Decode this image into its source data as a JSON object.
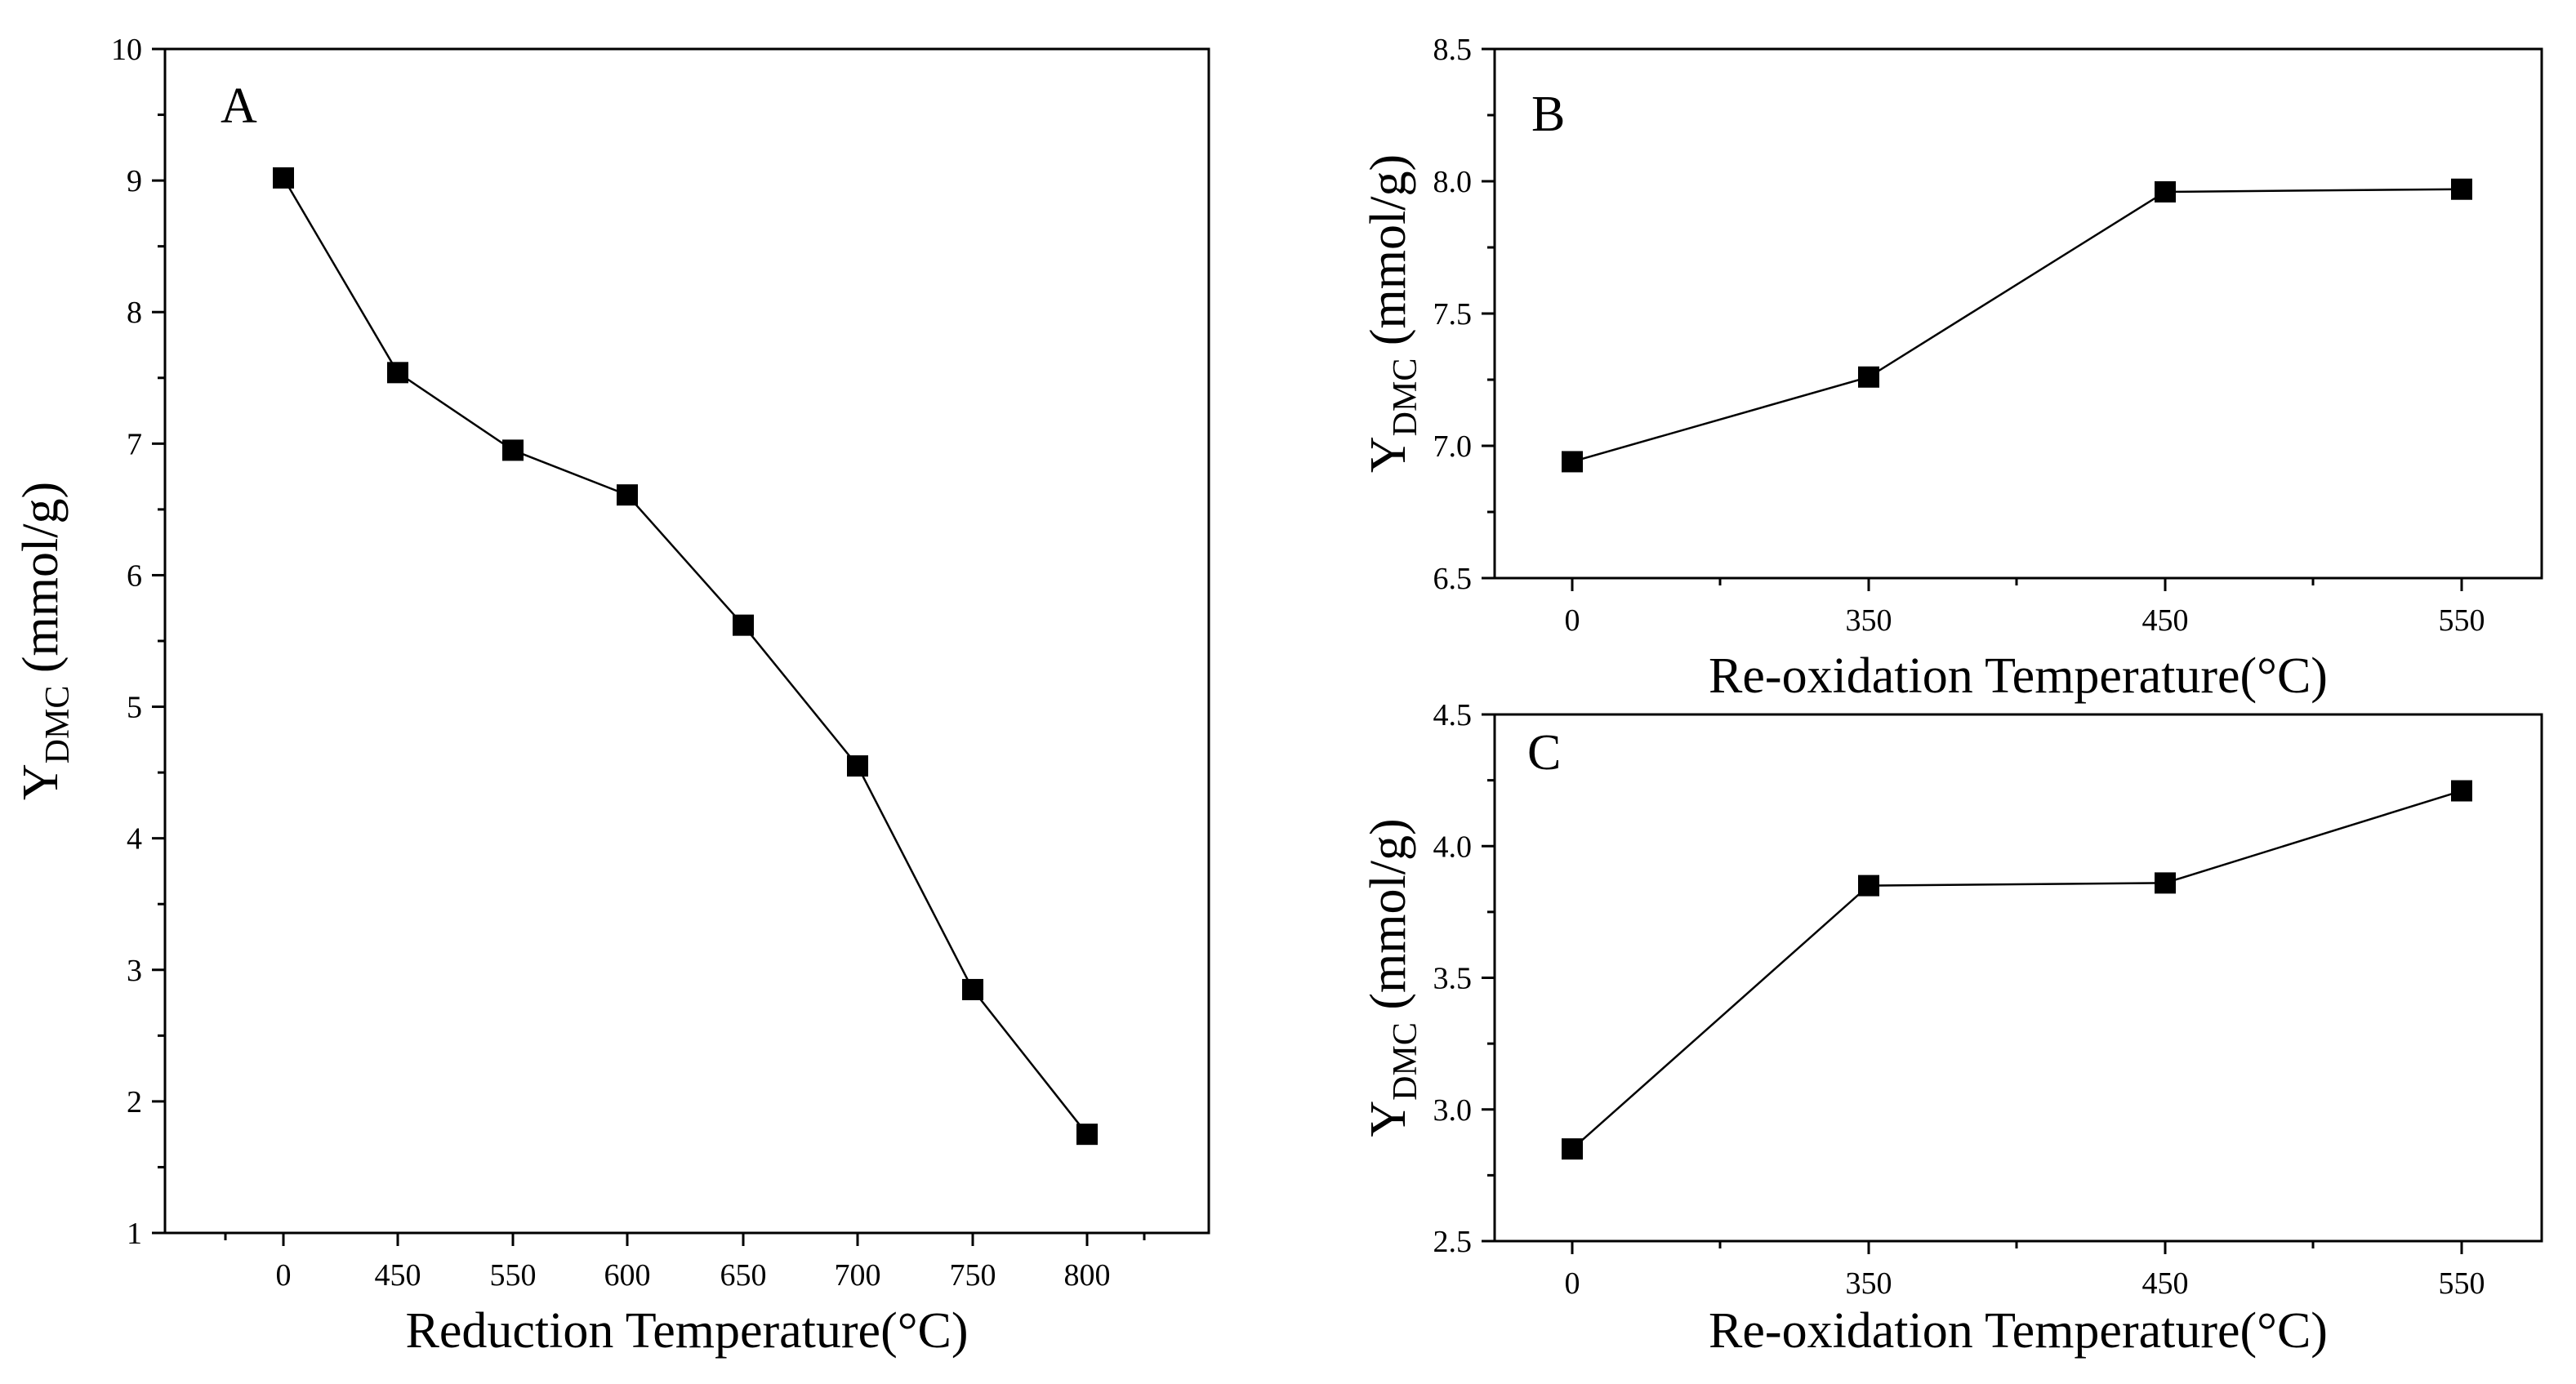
{
  "chart_data": [
    {
      "panel": "A",
      "type": "line",
      "marker": "square",
      "categories": [
        "0",
        "450",
        "550",
        "600",
        "650",
        "700",
        "750",
        "800"
      ],
      "values": [
        9.02,
        7.54,
        6.95,
        6.61,
        5.62,
        4.55,
        2.85,
        1.75
      ],
      "xlabel": "Reduction  Temperature(°C)",
      "ylabel_main": "Y",
      "ylabel_sub": "DMC",
      "ylabel_unit": " (mmol/g)",
      "ylim": [
        1,
        10
      ],
      "yticks": [
        "1",
        "2",
        "3",
        "4",
        "5",
        "6",
        "7",
        "8",
        "9",
        "10"
      ],
      "legend": "none"
    },
    {
      "panel": "B",
      "type": "line",
      "marker": "square",
      "categories": [
        "0",
        "350",
        "450",
        "550"
      ],
      "values": [
        6.94,
        7.26,
        7.96,
        7.97
      ],
      "xlabel": "Re-oxidation  Temperature(°C)",
      "ylabel_main": "Y",
      "ylabel_sub": "DMC",
      "ylabel_unit": " (mmol/g)",
      "ylim": [
        6.5,
        8.5
      ],
      "yticks": [
        "6.5",
        "7.0",
        "7.5",
        "8.0",
        "8.5"
      ],
      "legend": "none"
    },
    {
      "panel": "C",
      "type": "line",
      "marker": "square",
      "categories": [
        "0",
        "350",
        "450",
        "550"
      ],
      "values": [
        2.85,
        3.85,
        3.86,
        4.21
      ],
      "xlabel": "Re-oxidation  Temperature(°C)",
      "ylabel_main": "Y",
      "ylabel_sub": "DMC",
      "ylabel_unit": " (mmol/g)",
      "ylim": [
        2.5,
        4.5
      ],
      "yticks": [
        "2.5",
        "3.0",
        "3.5",
        "4.0",
        "4.5"
      ],
      "legend": "none"
    }
  ]
}
